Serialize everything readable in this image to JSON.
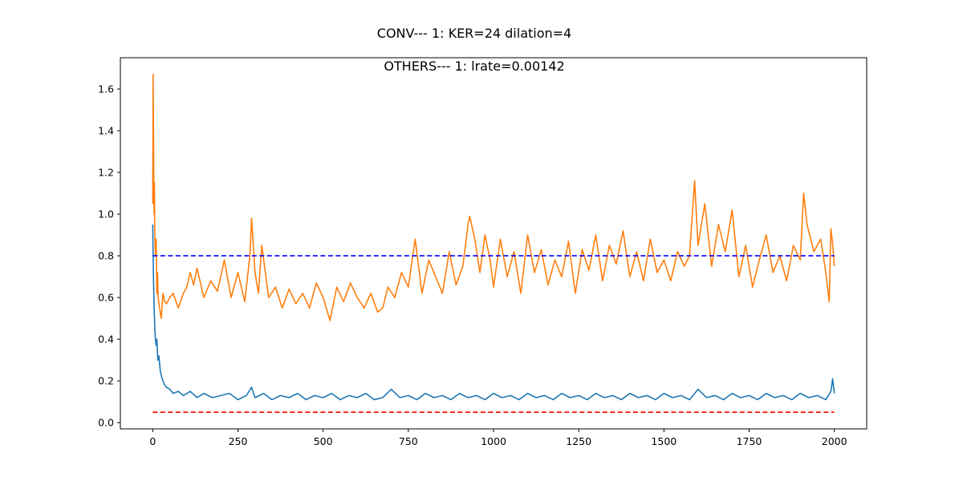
{
  "chart_data": {
    "type": "line",
    "title": "CONV--- 1: KER=24   dilation=4",
    "subtitle": "OTHERS--- 1: lrate=0.00142",
    "xlabel": "",
    "ylabel": "",
    "xlim": [
      -95,
      2095
    ],
    "ylim": [
      -0.03,
      1.75
    ],
    "xticks": [
      0,
      250,
      500,
      750,
      1000,
      1250,
      1500,
      1750,
      2000
    ],
    "xtick_labels": [
      "0",
      "250",
      "500",
      "750",
      "1000",
      "1250",
      "1500",
      "1750",
      "2000"
    ],
    "yticks": [
      0.0,
      0.2,
      0.4,
      0.6,
      0.8,
      1.0,
      1.2,
      1.4,
      1.6
    ],
    "ytick_labels": [
      "0.0",
      "0.2",
      "0.4",
      "0.6",
      "0.8",
      "1.0",
      "1.2",
      "1.4",
      "1.6"
    ],
    "grid": false,
    "legend": "none",
    "series": [
      {
        "color": "#1f77b4",
        "style": "solid",
        "x": [
          0,
          2,
          4,
          6,
          8,
          10,
          12,
          15,
          18,
          22,
          26,
          30,
          35,
          40,
          50,
          60,
          75,
          90,
          110,
          130,
          150,
          175,
          200,
          225,
          250,
          275,
          290,
          300,
          325,
          350,
          375,
          400,
          425,
          450,
          475,
          500,
          525,
          550,
          575,
          600,
          625,
          650,
          675,
          700,
          725,
          750,
          775,
          800,
          825,
          850,
          875,
          900,
          925,
          950,
          975,
          1000,
          1025,
          1050,
          1075,
          1100,
          1125,
          1150,
          1175,
          1200,
          1225,
          1250,
          1275,
          1300,
          1325,
          1350,
          1375,
          1400,
          1425,
          1450,
          1475,
          1500,
          1525,
          1550,
          1575,
          1600,
          1625,
          1650,
          1675,
          1700,
          1725,
          1750,
          1775,
          1800,
          1825,
          1850,
          1875,
          1900,
          1925,
          1950,
          1975,
          1990,
          1995,
          2000
        ],
        "y": [
          0.95,
          0.7,
          0.55,
          0.45,
          0.4,
          0.37,
          0.4,
          0.3,
          0.32,
          0.25,
          0.22,
          0.2,
          0.18,
          0.17,
          0.16,
          0.14,
          0.15,
          0.13,
          0.15,
          0.12,
          0.14,
          0.12,
          0.13,
          0.14,
          0.11,
          0.13,
          0.17,
          0.12,
          0.14,
          0.11,
          0.13,
          0.12,
          0.14,
          0.11,
          0.13,
          0.12,
          0.14,
          0.11,
          0.13,
          0.12,
          0.14,
          0.11,
          0.12,
          0.16,
          0.12,
          0.13,
          0.11,
          0.14,
          0.12,
          0.13,
          0.11,
          0.14,
          0.12,
          0.13,
          0.11,
          0.14,
          0.12,
          0.13,
          0.11,
          0.14,
          0.12,
          0.13,
          0.11,
          0.14,
          0.12,
          0.13,
          0.11,
          0.14,
          0.12,
          0.13,
          0.11,
          0.14,
          0.12,
          0.13,
          0.11,
          0.14,
          0.12,
          0.13,
          0.11,
          0.16,
          0.12,
          0.13,
          0.11,
          0.14,
          0.12,
          0.13,
          0.11,
          0.14,
          0.12,
          0.13,
          0.11,
          0.14,
          0.12,
          0.13,
          0.11,
          0.15,
          0.21,
          0.14
        ]
      },
      {
        "color": "#ff7f0e",
        "style": "solid",
        "x": [
          0,
          1,
          2,
          3,
          4,
          5,
          6,
          8,
          10,
          12,
          14,
          16,
          20,
          25,
          30,
          35,
          40,
          50,
          60,
          75,
          90,
          100,
          110,
          120,
          130,
          150,
          170,
          190,
          210,
          230,
          250,
          270,
          285,
          290,
          300,
          310,
          320,
          340,
          360,
          380,
          400,
          420,
          440,
          460,
          480,
          500,
          520,
          540,
          560,
          580,
          600,
          620,
          640,
          660,
          675,
          690,
          710,
          730,
          750,
          770,
          790,
          810,
          830,
          850,
          870,
          890,
          910,
          925,
          930,
          945,
          960,
          975,
          990,
          1000,
          1020,
          1040,
          1060,
          1080,
          1100,
          1120,
          1140,
          1160,
          1180,
          1200,
          1220,
          1240,
          1260,
          1280,
          1300,
          1320,
          1340,
          1360,
          1380,
          1400,
          1420,
          1440,
          1460,
          1480,
          1500,
          1520,
          1540,
          1560,
          1575,
          1590,
          1600,
          1620,
          1640,
          1660,
          1680,
          1700,
          1720,
          1740,
          1760,
          1780,
          1800,
          1820,
          1840,
          1860,
          1880,
          1900,
          1910,
          1920,
          1940,
          1960,
          1975,
          1985,
          1990,
          1995,
          2000
        ],
        "y": [
          1.05,
          1.67,
          1.45,
          1.17,
          1.0,
          1.15,
          0.9,
          0.8,
          0.88,
          0.62,
          0.72,
          0.6,
          0.55,
          0.5,
          0.62,
          0.58,
          0.57,
          0.6,
          0.62,
          0.55,
          0.62,
          0.65,
          0.72,
          0.66,
          0.74,
          0.6,
          0.68,
          0.63,
          0.78,
          0.6,
          0.72,
          0.58,
          0.8,
          0.98,
          0.72,
          0.62,
          0.85,
          0.6,
          0.65,
          0.55,
          0.64,
          0.57,
          0.62,
          0.55,
          0.67,
          0.6,
          0.49,
          0.65,
          0.58,
          0.67,
          0.6,
          0.55,
          0.62,
          0.53,
          0.55,
          0.65,
          0.6,
          0.72,
          0.65,
          0.88,
          0.62,
          0.78,
          0.7,
          0.62,
          0.82,
          0.66,
          0.75,
          0.95,
          0.99,
          0.88,
          0.72,
          0.9,
          0.78,
          0.65,
          0.88,
          0.7,
          0.82,
          0.62,
          0.9,
          0.72,
          0.83,
          0.66,
          0.78,
          0.7,
          0.87,
          0.62,
          0.83,
          0.73,
          0.9,
          0.68,
          0.85,
          0.76,
          0.92,
          0.7,
          0.82,
          0.68,
          0.88,
          0.72,
          0.78,
          0.68,
          0.82,
          0.75,
          0.8,
          1.16,
          0.85,
          1.05,
          0.75,
          0.95,
          0.82,
          1.02,
          0.7,
          0.85,
          0.65,
          0.78,
          0.9,
          0.72,
          0.8,
          0.68,
          0.85,
          0.78,
          1.1,
          0.95,
          0.82,
          0.88,
          0.72,
          0.58,
          0.93,
          0.86,
          0.75
        ]
      },
      {
        "color": "#0000ff",
        "style": "dashed",
        "x": [
          0,
          2000
        ],
        "y": [
          0.8,
          0.8
        ]
      },
      {
        "color": "#ff0000",
        "style": "dashed",
        "x": [
          0,
          2000
        ],
        "y": [
          0.05,
          0.05
        ]
      }
    ]
  }
}
